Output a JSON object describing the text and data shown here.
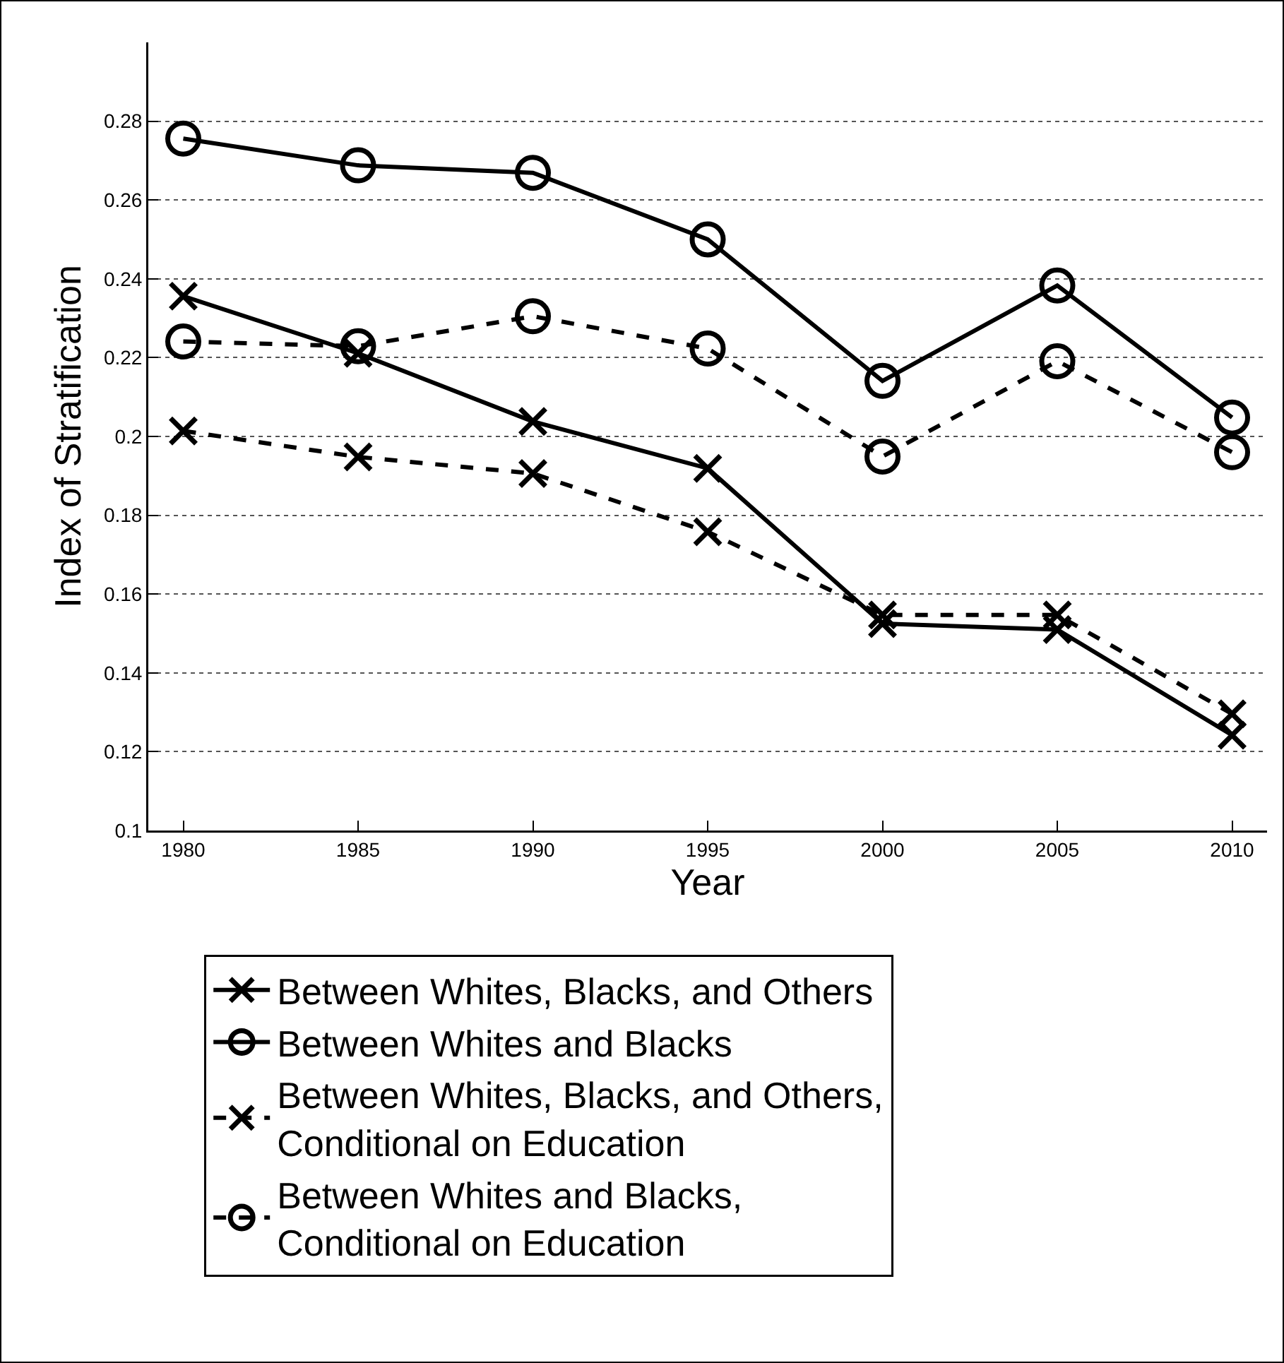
{
  "chart_data": {
    "type": "line",
    "xlabel": "Year",
    "ylabel": "Index of Stratification",
    "x": [
      1980,
      1985,
      1990,
      1995,
      2000,
      2005,
      2010
    ],
    "series": [
      {
        "name": "Between Whites, Blacks, and Others",
        "color": "#000000",
        "marker": "cross",
        "line_style": "solid",
        "values": [
          0.2356,
          0.2211,
          0.2038,
          0.1919,
          0.1525,
          0.151,
          0.1242
        ]
      },
      {
        "name": "Between Whites and Blacks",
        "color": "#000000",
        "marker": "circle",
        "line_style": "solid",
        "values": [
          0.2756,
          0.2688,
          0.2669,
          0.25,
          0.2141,
          0.2383,
          0.2048
        ]
      },
      {
        "name": "Between Whites, Blacks, and Others,\nConditional on Education",
        "color": "#000000",
        "marker": "cross",
        "line_style": "dashed",
        "values": [
          0.2014,
          0.1948,
          0.1906,
          0.1758,
          0.1547,
          0.1547,
          0.1296
        ]
      },
      {
        "name": "Between Whites and Blacks,\nConditional on Education",
        "color": "#000000",
        "marker": "circle",
        "line_style": "dashed",
        "values": [
          0.2241,
          0.2229,
          0.2305,
          0.2223,
          0.1949,
          0.2191,
          0.196
        ]
      }
    ],
    "xlim": [
      1979,
      2011
    ],
    "xticks": [
      1980,
      1985,
      1990,
      1995,
      2000,
      2005,
      2010
    ],
    "ylim": [
      0.1,
      0.3
    ],
    "yticks": [
      0.1,
      0.12,
      0.14,
      0.16,
      0.18,
      0.2,
      0.22,
      0.24,
      0.26,
      0.28
    ],
    "grid": "y",
    "legend": "bottom"
  }
}
